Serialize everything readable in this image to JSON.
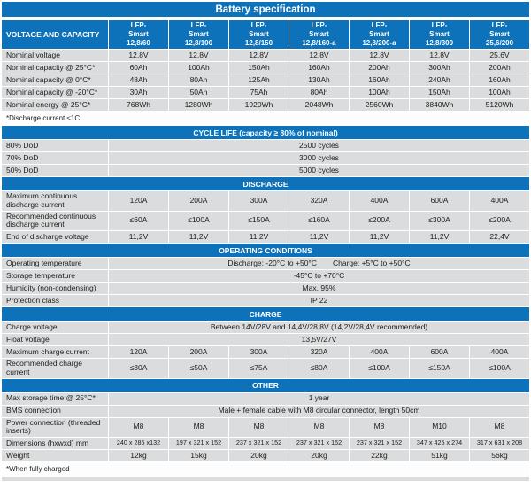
{
  "title": "Battery specification",
  "colors": {
    "header_blue": "#0d72ba",
    "cell_gray": "#dbdcdd",
    "text": "#1d1d1b",
    "header_text": "#ffffff"
  },
  "header": {
    "label": "VOLTAGE AND CAPACITY",
    "columns": [
      "LFP-\nSmart\n12,8/60",
      "LFP-\nSmart\n12,8/100",
      "LFP-\nSmart\n12,8/150",
      "LFP-\nSmart\n12,8/160-a",
      "LFP-\nSmart\n12,8/200-a",
      "LFP-\nSmart\n12,8/300",
      "LFP-\nSmart\n25,6/200"
    ]
  },
  "rows": [
    {
      "type": "values",
      "label": "Nominal voltage",
      "values": [
        "12,8V",
        "12,8V",
        "12,8V",
        "12,8V",
        "12,8V",
        "12,8V",
        "25,6V"
      ]
    },
    {
      "type": "values",
      "label": "Nominal capacity @ 25°C*",
      "values": [
        "60Ah",
        "100Ah",
        "150Ah",
        "160Ah",
        "200Ah",
        "300Ah",
        "200Ah"
      ]
    },
    {
      "type": "values",
      "label": "Nominal capacity @ 0°C*",
      "values": [
        "48Ah",
        "80Ah",
        "125Ah",
        "130Ah",
        "160Ah",
        "240Ah",
        "160Ah"
      ]
    },
    {
      "type": "values",
      "label": "Nominal capacity @ -20°C*",
      "values": [
        "30Ah",
        "50Ah",
        "75Ah",
        "80Ah",
        "100Ah",
        "150Ah",
        "100Ah"
      ]
    },
    {
      "type": "values",
      "label": "Nominal energy @ 25°C*",
      "values": [
        "768Wh",
        "1280Wh",
        "1920Wh",
        "2048Wh",
        "2560Wh",
        "3840Wh",
        "5120Wh"
      ]
    },
    {
      "type": "note",
      "label": "*Discharge current ≤1C"
    },
    {
      "type": "section",
      "label": "CYCLE LIFE (capacity ≥ 80% of nominal)"
    },
    {
      "type": "span",
      "label": "80% DoD",
      "value": "2500 cycles"
    },
    {
      "type": "span",
      "label": "70% DoD",
      "value": "3000 cycles"
    },
    {
      "type": "span",
      "label": "50% DoD",
      "value": "5000 cycles"
    },
    {
      "type": "section",
      "label": "DISCHARGE"
    },
    {
      "type": "values",
      "label": "Maximum continuous\ndischarge current",
      "values": [
        "120A",
        "200A",
        "300A",
        "320A",
        "400A",
        "600A",
        "400A"
      ]
    },
    {
      "type": "values",
      "label": "Recommended continuous\ndischarge current",
      "values": [
        "≤60A",
        "≤100A",
        "≤150A",
        "≤160A",
        "≤200A",
        "≤300A",
        "≤200A"
      ]
    },
    {
      "type": "values",
      "label": "End of discharge voltage",
      "values": [
        "11,2V",
        "11,2V",
        "11,2V",
        "11,2V",
        "11,2V",
        "11,2V",
        "22,4V"
      ]
    },
    {
      "type": "section",
      "label": "OPERATING CONDITIONS"
    },
    {
      "type": "span2",
      "label": "Operating temperature",
      "values": [
        "Discharge: -20°C to +50°C",
        "Charge: +5°C to +50°C"
      ]
    },
    {
      "type": "span",
      "label": "Storage temperature",
      "value": "-45°C to +70°C"
    },
    {
      "type": "span",
      "label": "Humidity (non-condensing)",
      "value": "Max. 95%"
    },
    {
      "type": "span",
      "label": "Protection class",
      "value": "IP 22"
    },
    {
      "type": "section",
      "label": "CHARGE"
    },
    {
      "type": "span",
      "label": "Charge voltage",
      "value": "Between 14V/28V and 14,4V/28,8V (14,2V/28,4V recommended)"
    },
    {
      "type": "span",
      "label": "Float voltage",
      "value": "13,5V/27V"
    },
    {
      "type": "values",
      "label": "Maximum charge current",
      "values": [
        "120A",
        "200A",
        "300A",
        "320A",
        "400A",
        "600A",
        "400A"
      ]
    },
    {
      "type": "values",
      "label": "Recommended charge\ncurrent",
      "values": [
        "≤30A",
        "≤50A",
        "≤75A",
        "≤80A",
        "≤100A",
        "≤150A",
        "≤100A"
      ]
    },
    {
      "type": "section",
      "label": "OTHER"
    },
    {
      "type": "span",
      "label": "Max storage time @ 25°C*",
      "value": "1 year"
    },
    {
      "type": "span",
      "label": "BMS connection",
      "value": "Male + female cable with M8 circular connector, length 50cm"
    },
    {
      "type": "values",
      "label": "Power connection (threaded\ninserts)",
      "values": [
        "M8",
        "M8",
        "M8",
        "M8",
        "M8",
        "M10",
        "M8"
      ]
    },
    {
      "type": "values",
      "label": "Dimensions (hxwxd) mm",
      "small": true,
      "values": [
        "240 x 285 x132",
        "197 x 321 x 152",
        "237 x 321 x 152",
        "237 x 321 x 152",
        "237 x 321 x 152",
        "347 x 425 x 274",
        "317 x 631 x 208"
      ]
    },
    {
      "type": "values",
      "label": "Weight",
      "values": [
        "12kg",
        "15kg",
        "20kg",
        "20kg",
        "22kg",
        "51kg",
        "56kg"
      ]
    },
    {
      "type": "note",
      "label": "*When fully charged"
    }
  ]
}
